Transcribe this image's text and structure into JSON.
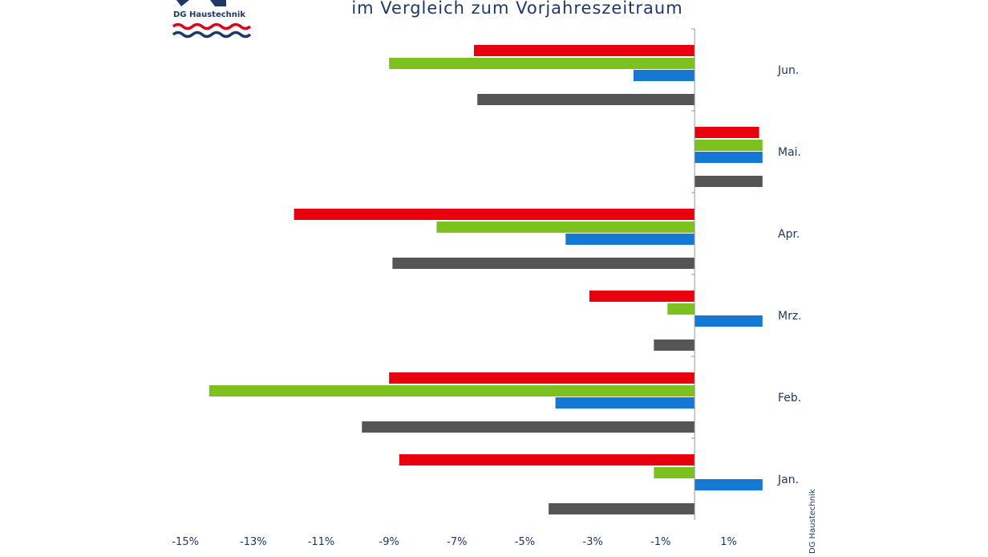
{
  "title": "im Vergleich zum Vorjahreszeitraum",
  "logo": {
    "text": "DG Haustechnik"
  },
  "watermark": "DG Haustechnik",
  "colors": {
    "axis": "#999999",
    "text": "#1f3864",
    "logo_red": "#e0001b",
    "logo_blue": "#1f3864"
  },
  "chart_data": {
    "type": "bar",
    "orientation": "horizontal",
    "title": "im Vergleich zum Vorjahreszeitraum",
    "categories": [
      "Jan.",
      "Feb.",
      "Mrz.",
      "Apr.",
      "Mai.",
      "Jun."
    ],
    "xlim": [
      -15.5,
      2.5
    ],
    "xticks": [
      {
        "value": -15,
        "label": "-15%"
      },
      {
        "value": -13,
        "label": "-13%"
      },
      {
        "value": -11,
        "label": "-11%"
      },
      {
        "value": -9,
        "label": "-9%"
      },
      {
        "value": -7,
        "label": "-7%"
      },
      {
        "value": -5,
        "label": "-5%"
      },
      {
        "value": -3,
        "label": "-3%"
      },
      {
        "value": -1,
        "label": "-1%"
      },
      {
        "value": 1,
        "label": "1%"
      }
    ],
    "grid": false,
    "legend": "none",
    "series": [
      {
        "color": "#e8000f",
        "values": [
          -8.7,
          -9.0,
          -3.1,
          -11.8,
          1.9,
          -6.5
        ]
      },
      {
        "color": "#7dc11e",
        "values": [
          -1.2,
          -14.3,
          -0.8,
          -7.6,
          2.0,
          -9.0
        ]
      },
      {
        "color": "#1479d3",
        "values": [
          2.0,
          -4.1,
          2.0,
          -3.8,
          2.0,
          -1.8
        ]
      },
      {
        "color": "#555555",
        "values": [
          -4.3,
          -9.8,
          -1.2,
          -8.9,
          2.0,
          -6.4
        ]
      }
    ]
  }
}
